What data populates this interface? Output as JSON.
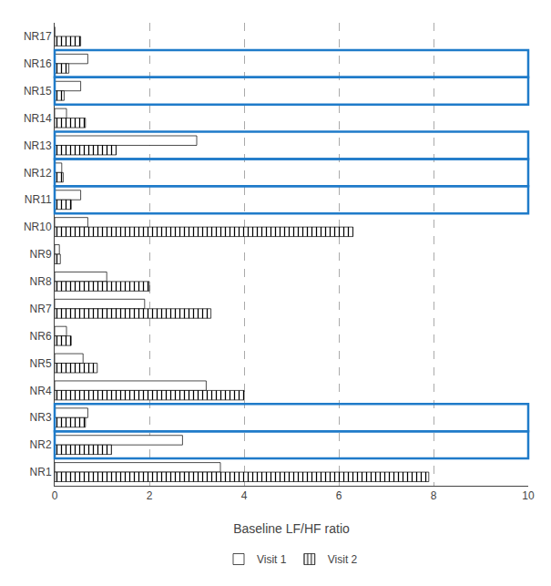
{
  "chart_data": {
    "type": "bar",
    "orientation": "horizontal",
    "categories": [
      "NR17",
      "NR16",
      "NR15",
      "NR14",
      "NR13",
      "NR12",
      "NR11",
      "NR10",
      "NR9",
      "NR8",
      "NR7",
      "NR6",
      "NR5",
      "NR4",
      "NR3",
      "NR2",
      "NR1"
    ],
    "series": [
      {
        "name": "Visit 1",
        "color": "white",
        "values": [
          0.0,
          0.7,
          0.55,
          0.25,
          3.0,
          0.15,
          0.55,
          0.7,
          0.1,
          1.1,
          1.9,
          0.25,
          0.6,
          3.2,
          0.7,
          2.7,
          3.5
        ]
      },
      {
        "name": "Visit 2",
        "color": "white",
        "values": [
          0.55,
          0.3,
          0.2,
          0.65,
          1.3,
          0.18,
          0.35,
          6.3,
          0.12,
          2.0,
          3.3,
          0.35,
          0.9,
          4.0,
          0.65,
          1.2,
          7.9
        ]
      }
    ],
    "highlighted": [
      false,
      true,
      true,
      false,
      true,
      true,
      true,
      false,
      false,
      false,
      false,
      false,
      false,
      false,
      true,
      true,
      false
    ],
    "highlight_color": "#1F7BC9",
    "xlim": [
      0,
      10
    ],
    "xticks": [
      0,
      2,
      4,
      6,
      8,
      10
    ],
    "xlabel": "Baseline LF/HF ratio",
    "grid": true,
    "legend": "bottom"
  }
}
